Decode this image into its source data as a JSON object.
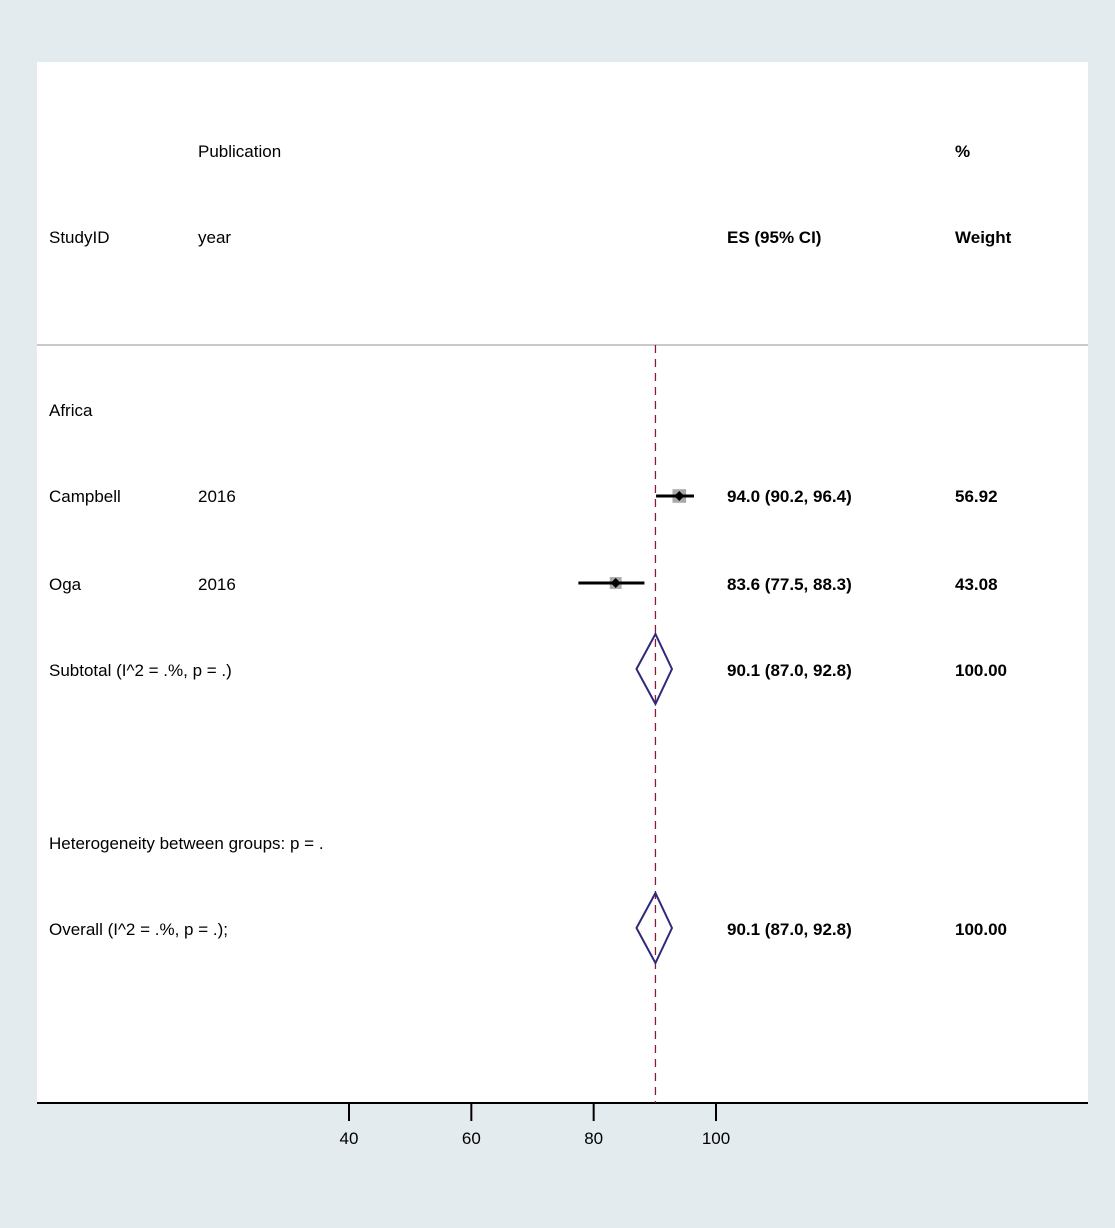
{
  "chart_data": {
    "type": "forest",
    "headers": {
      "study_id": "StudyID",
      "publication_line1": "Publication",
      "publication_line2": "year",
      "es": "ES (95% CI)",
      "weight_line1": "%",
      "weight_line2": "Weight"
    },
    "group": {
      "label": "Africa"
    },
    "studies": [
      {
        "study": "Campbell",
        "year": "2016",
        "es": 94.0,
        "lo": 90.2,
        "hi": 96.4,
        "es_text": "94.0 (90.2, 96.4)",
        "weight": "56.92"
      },
      {
        "study": "Oga",
        "year": "2016",
        "es": 83.6,
        "lo": 77.5,
        "hi": 88.3,
        "es_text": "83.6 (77.5, 88.3)",
        "weight": "43.08"
      }
    ],
    "subtotal": {
      "label": "Subtotal  (I^2 = .%, p = .)",
      "es": 90.1,
      "lo": 87.0,
      "hi": 92.8,
      "es_text": "90.1 (87.0, 92.8)",
      "weight": "100.00"
    },
    "heterogeneity": {
      "label": "Heterogeneity between groups: p = ."
    },
    "overall": {
      "label": "Overall  (I^2 = .%, p = .);",
      "es": 90.1,
      "lo": 87.0,
      "hi": 92.8,
      "es_text": "90.1 (87.0, 92.8)",
      "weight": "100.00"
    },
    "x_ticks": [
      40,
      60,
      80,
      100
    ],
    "x_tick_labels": [
      "40",
      "60",
      "80",
      "100"
    ],
    "reference_line": 90.1,
    "colors": {
      "background": "#e3ebee",
      "panel": "#ffffff",
      "diamond": "#2e2a7a",
      "reference_line": "#8b1a3a",
      "weight_box": "#a9a9a9",
      "ci_line": "#000000"
    }
  }
}
